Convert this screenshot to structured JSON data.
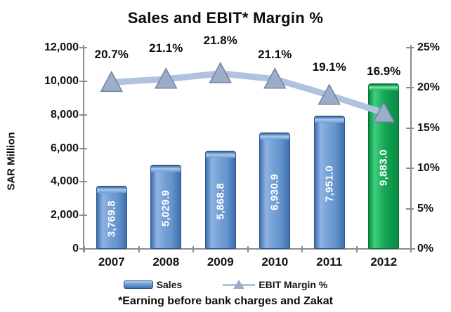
{
  "title": "Sales and EBIT* Margin %",
  "footnote": "*Earning before bank charges and Zakat",
  "y_axis": {
    "label": "SAR Million",
    "ticks": [
      "12,000",
      "10,000",
      "8,000",
      "6,000",
      "4,000",
      "2,000",
      "0"
    ],
    "min": 0,
    "max": 12000
  },
  "y2_axis": {
    "ticks": [
      "25%",
      "20%",
      "15%",
      "10%",
      "5%",
      "0%"
    ],
    "min": 0,
    "max": 25
  },
  "legend": [
    {
      "label": "Sales",
      "marker": "bar-swatch-icon"
    },
    {
      "label": "EBIT Margin %",
      "marker": "triangle-line-icon"
    }
  ],
  "chart_data": {
    "type": "bar+line",
    "categories": [
      "2007",
      "2008",
      "2009",
      "2010",
      "2011",
      "2012"
    ],
    "series": [
      {
        "name": "Sales",
        "type": "bar",
        "axis": "left",
        "values": [
          3769.8,
          5029.9,
          5868.8,
          6930.9,
          7951.0,
          9883.0
        ],
        "labels": [
          "3,769.8",
          "5,029.9",
          "5,868.8",
          "6,930.9",
          "7,951.0",
          "9,883.0"
        ],
        "bar_colors": [
          "blue",
          "blue",
          "blue",
          "blue",
          "blue",
          "green"
        ]
      },
      {
        "name": "EBIT Margin %",
        "type": "line",
        "axis": "right",
        "values": [
          20.7,
          21.1,
          21.8,
          21.1,
          19.1,
          16.9
        ],
        "labels": [
          "20.7%",
          "21.1%",
          "21.8%",
          "21.1%",
          "19.1%",
          "16.9%"
        ]
      }
    ],
    "title": "Sales and EBIT* Margin %",
    "xlabel": "",
    "ylabel": "SAR Million",
    "ylim": [
      0,
      12000
    ],
    "y2lim": [
      0,
      25
    ],
    "grid": false,
    "legend_position": "bottom"
  },
  "colors": {
    "bar_blue": "#6f9cd2",
    "bar_green": "#16aa58",
    "line": "#b1c2de",
    "marker_fill": "#9cadc9",
    "marker_stroke": "#74849f",
    "axis": "#8c8c8c",
    "text": "#0d0d0d",
    "bar_label_text": "#ffffff"
  }
}
